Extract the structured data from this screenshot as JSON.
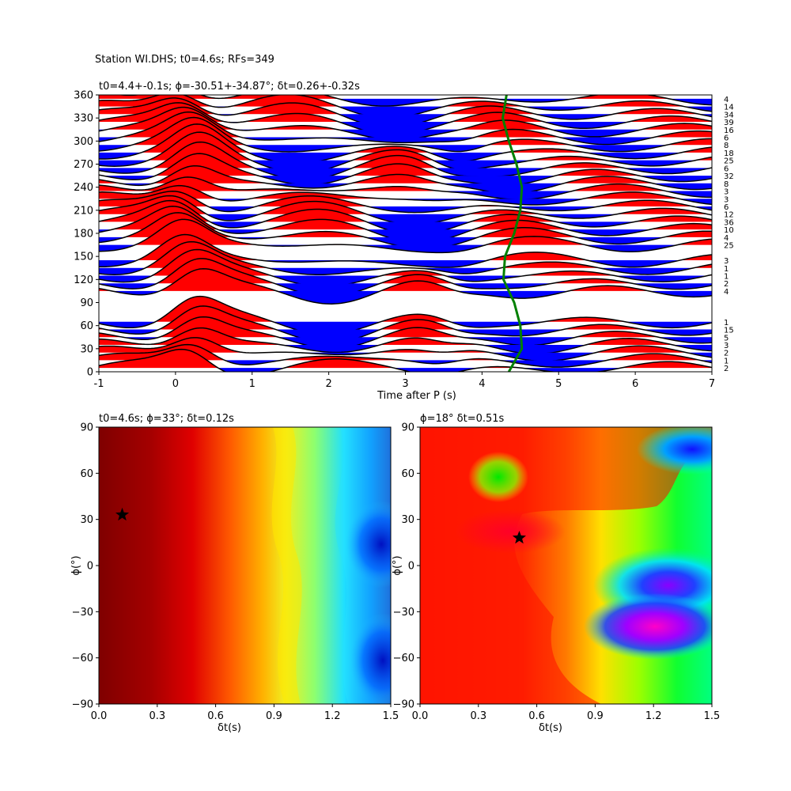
{
  "suptitle": "Station WI.DHS; t0=4.6s; RFs=349",
  "chart_data": [
    {
      "type": "line",
      "title": "t0=4.4+-0.1s; ϕ=-30.51+-34.87°; δt=0.26+-0.32s",
      "xlabel": "Time after P (s)",
      "ylabel": "",
      "xlim": [
        -1,
        7
      ],
      "ylim": [
        0,
        360
      ],
      "xticks": [
        -1,
        0,
        1,
        2,
        3,
        4,
        5,
        6,
        7
      ],
      "yticks": [
        0,
        30,
        60,
        90,
        120,
        150,
        180,
        210,
        240,
        270,
        300,
        330,
        360
      ],
      "fill_positive_color": "#ff0000",
      "fill_negative_color": "#0000ff",
      "trace_color": "#000000",
      "pick_curve_color": "#008000",
      "description": "stacked receiver functions binned by back-azimuth, with RF counts per bin",
      "series": [
        {
          "baz": 5,
          "count": "2"
        },
        {
          "baz": 15,
          "count": "1"
        },
        {
          "baz": 25,
          "count": "2"
        },
        {
          "baz": 35,
          "count": "3"
        },
        {
          "baz": 45,
          "count": "5"
        },
        {
          "baz": 55,
          "count": "15"
        },
        {
          "baz": 65,
          "count": "1"
        },
        {
          "baz": 105,
          "count": "4"
        },
        {
          "baz": 115,
          "count": "2"
        },
        {
          "baz": 125,
          "count": "1"
        },
        {
          "baz": 135,
          "count": "1"
        },
        {
          "baz": 145,
          "count": "3"
        },
        {
          "baz": 165,
          "count": "25"
        },
        {
          "baz": 175,
          "count": "4"
        },
        {
          "baz": 185,
          "count": "10"
        },
        {
          "baz": 195,
          "count": "36"
        },
        {
          "baz": 205,
          "count": "12"
        },
        {
          "baz": 215,
          "count": "6"
        },
        {
          "baz": 225,
          "count": "3"
        },
        {
          "baz": 235,
          "count": "3"
        },
        {
          "baz": 245,
          "count": "8"
        },
        {
          "baz": 255,
          "count": "32"
        },
        {
          "baz": 265,
          "count": "6"
        },
        {
          "baz": 275,
          "count": "25"
        },
        {
          "baz": 285,
          "count": "18"
        },
        {
          "baz": 295,
          "count": "8"
        },
        {
          "baz": 305,
          "count": "6"
        },
        {
          "baz": 315,
          "count": "16"
        },
        {
          "baz": 325,
          "count": "39"
        },
        {
          "baz": 335,
          "count": "34"
        },
        {
          "baz": 345,
          "count": "14"
        },
        {
          "baz": 355,
          "count": "4"
        }
      ],
      "pick_curve": {
        "y": [
          0,
          30,
          60,
          90,
          120,
          150,
          180,
          210,
          240,
          270,
          300,
          330,
          360
        ],
        "x": [
          4.35,
          4.52,
          4.5,
          4.42,
          4.28,
          4.3,
          4.42,
          4.5,
          4.52,
          4.45,
          4.35,
          4.27,
          4.32
        ]
      }
    },
    {
      "type": "heatmap",
      "title": "t0=4.6s; ϕ=33°; δt=0.12s",
      "xlabel": "δt(s)",
      "ylabel": "ϕ(°)",
      "xlim": [
        0,
        1.5
      ],
      "ylim": [
        -90,
        90
      ],
      "xticks": [
        "0.0",
        "0.3",
        "0.6",
        "0.9",
        "1.2",
        "1.5"
      ],
      "yticks": [
        -90,
        -60,
        -30,
        0,
        30,
        60,
        90
      ],
      "colormap": "jet",
      "best": {
        "dt": 0.12,
        "phi": 33
      },
      "description": "values decrease from left (dark red) to right (blue) with wavy contours"
    },
    {
      "type": "heatmap",
      "title": "ϕ=18° δt=0.51s",
      "xlabel": "δt(s)",
      "ylabel": "ϕ(°)",
      "xlim": [
        0,
        1.5
      ],
      "ylim": [
        -90,
        90
      ],
      "xticks": [
        "0.0",
        "0.3",
        "0.6",
        "0.9",
        "1.2",
        "1.5"
      ],
      "yticks": [
        -90,
        -60,
        -30,
        0,
        30,
        60,
        90
      ],
      "colormap": "hsv",
      "best": {
        "dt": 0.51,
        "phi": 18
      },
      "description": "red maximum near the star, green/blue/magenta minima toward large dt"
    }
  ]
}
